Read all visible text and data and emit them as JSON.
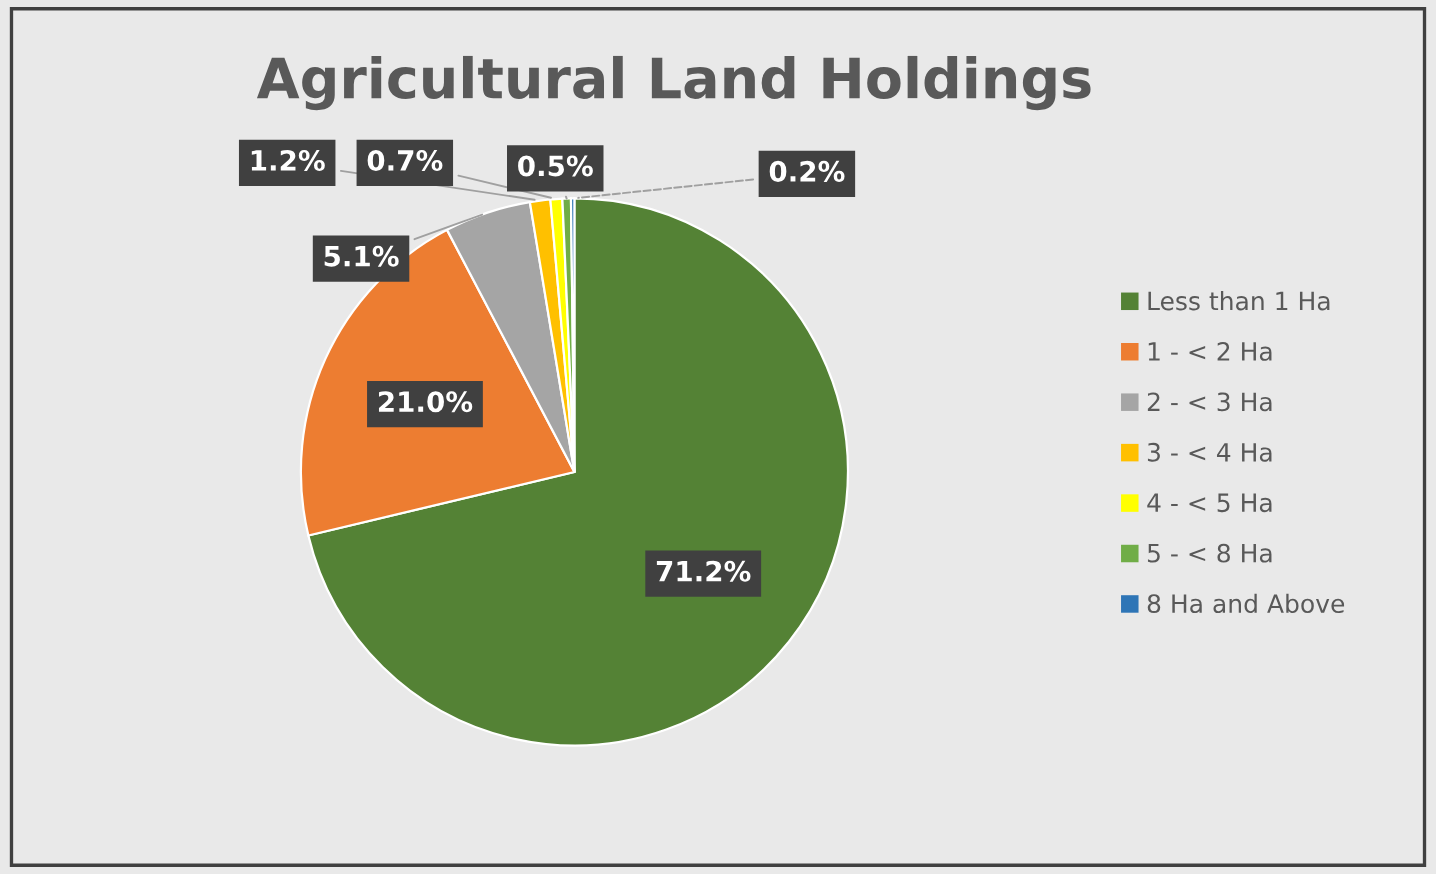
{
  "chart_data": {
    "type": "pie",
    "title": "Agricultural Land Holdings",
    "categories": [
      "Less than 1 Ha",
      "1 - < 2 Ha",
      "2 - < 3 Ha",
      "3 - < 4 Ha",
      "4 - < 5 Ha",
      "5 - < 8 Ha",
      "8 Ha and Above"
    ],
    "values": [
      71.2,
      21.0,
      5.1,
      1.2,
      0.7,
      0.5,
      0.2
    ],
    "colors": [
      "#548235",
      "#ed7d31",
      "#a5a5a5",
      "#ffc000",
      "#ffff00",
      "#70ad47",
      "#2e75b6"
    ],
    "value_labels": [
      "71.2%",
      "21.0%",
      "5.1%",
      "1.2%",
      "0.7%",
      "0.5%",
      "0.2%"
    ],
    "legend": "right"
  }
}
